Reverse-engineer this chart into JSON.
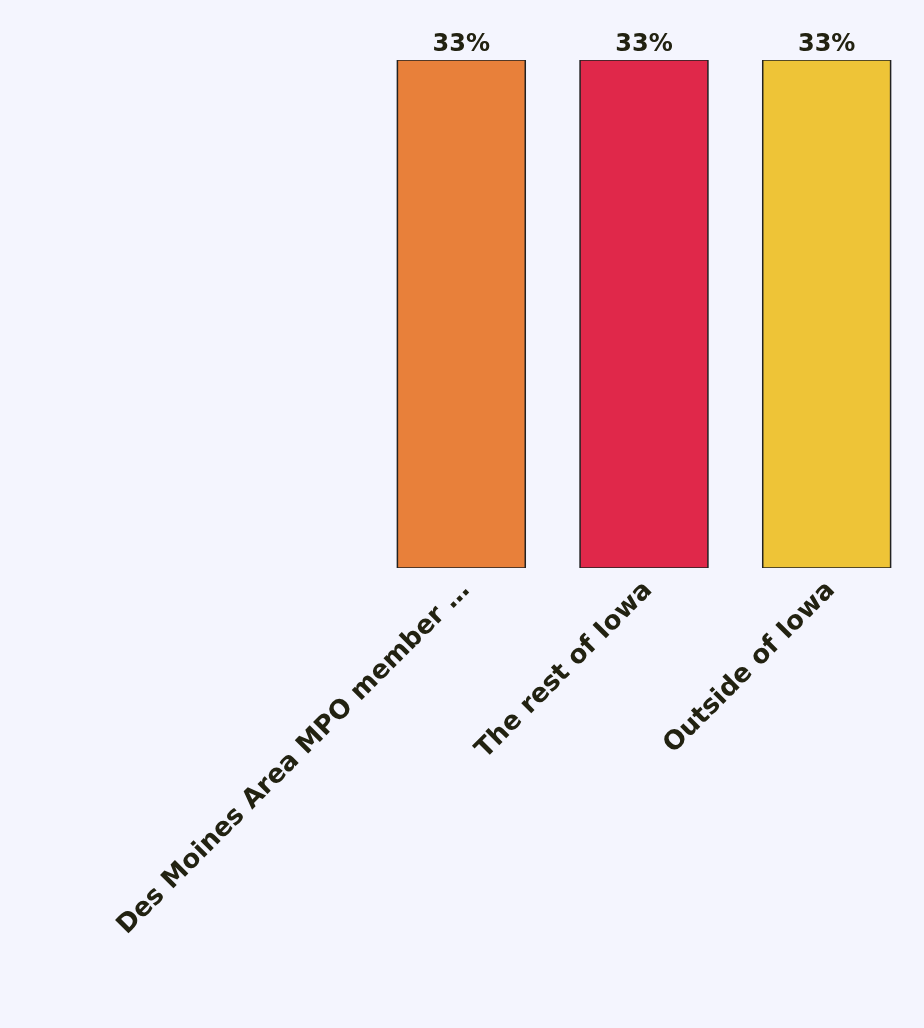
{
  "chart_data": {
    "type": "bar",
    "categories": [
      "Des Moines Area MPO member …",
      "The rest of Iowa",
      "Outside of Iowa"
    ],
    "values": [
      33,
      33,
      33
    ],
    "colors": [
      "#e8803a",
      "#e0284a",
      "#eec437"
    ],
    "value_labels": [
      "33%",
      "33%",
      "33%"
    ]
  }
}
